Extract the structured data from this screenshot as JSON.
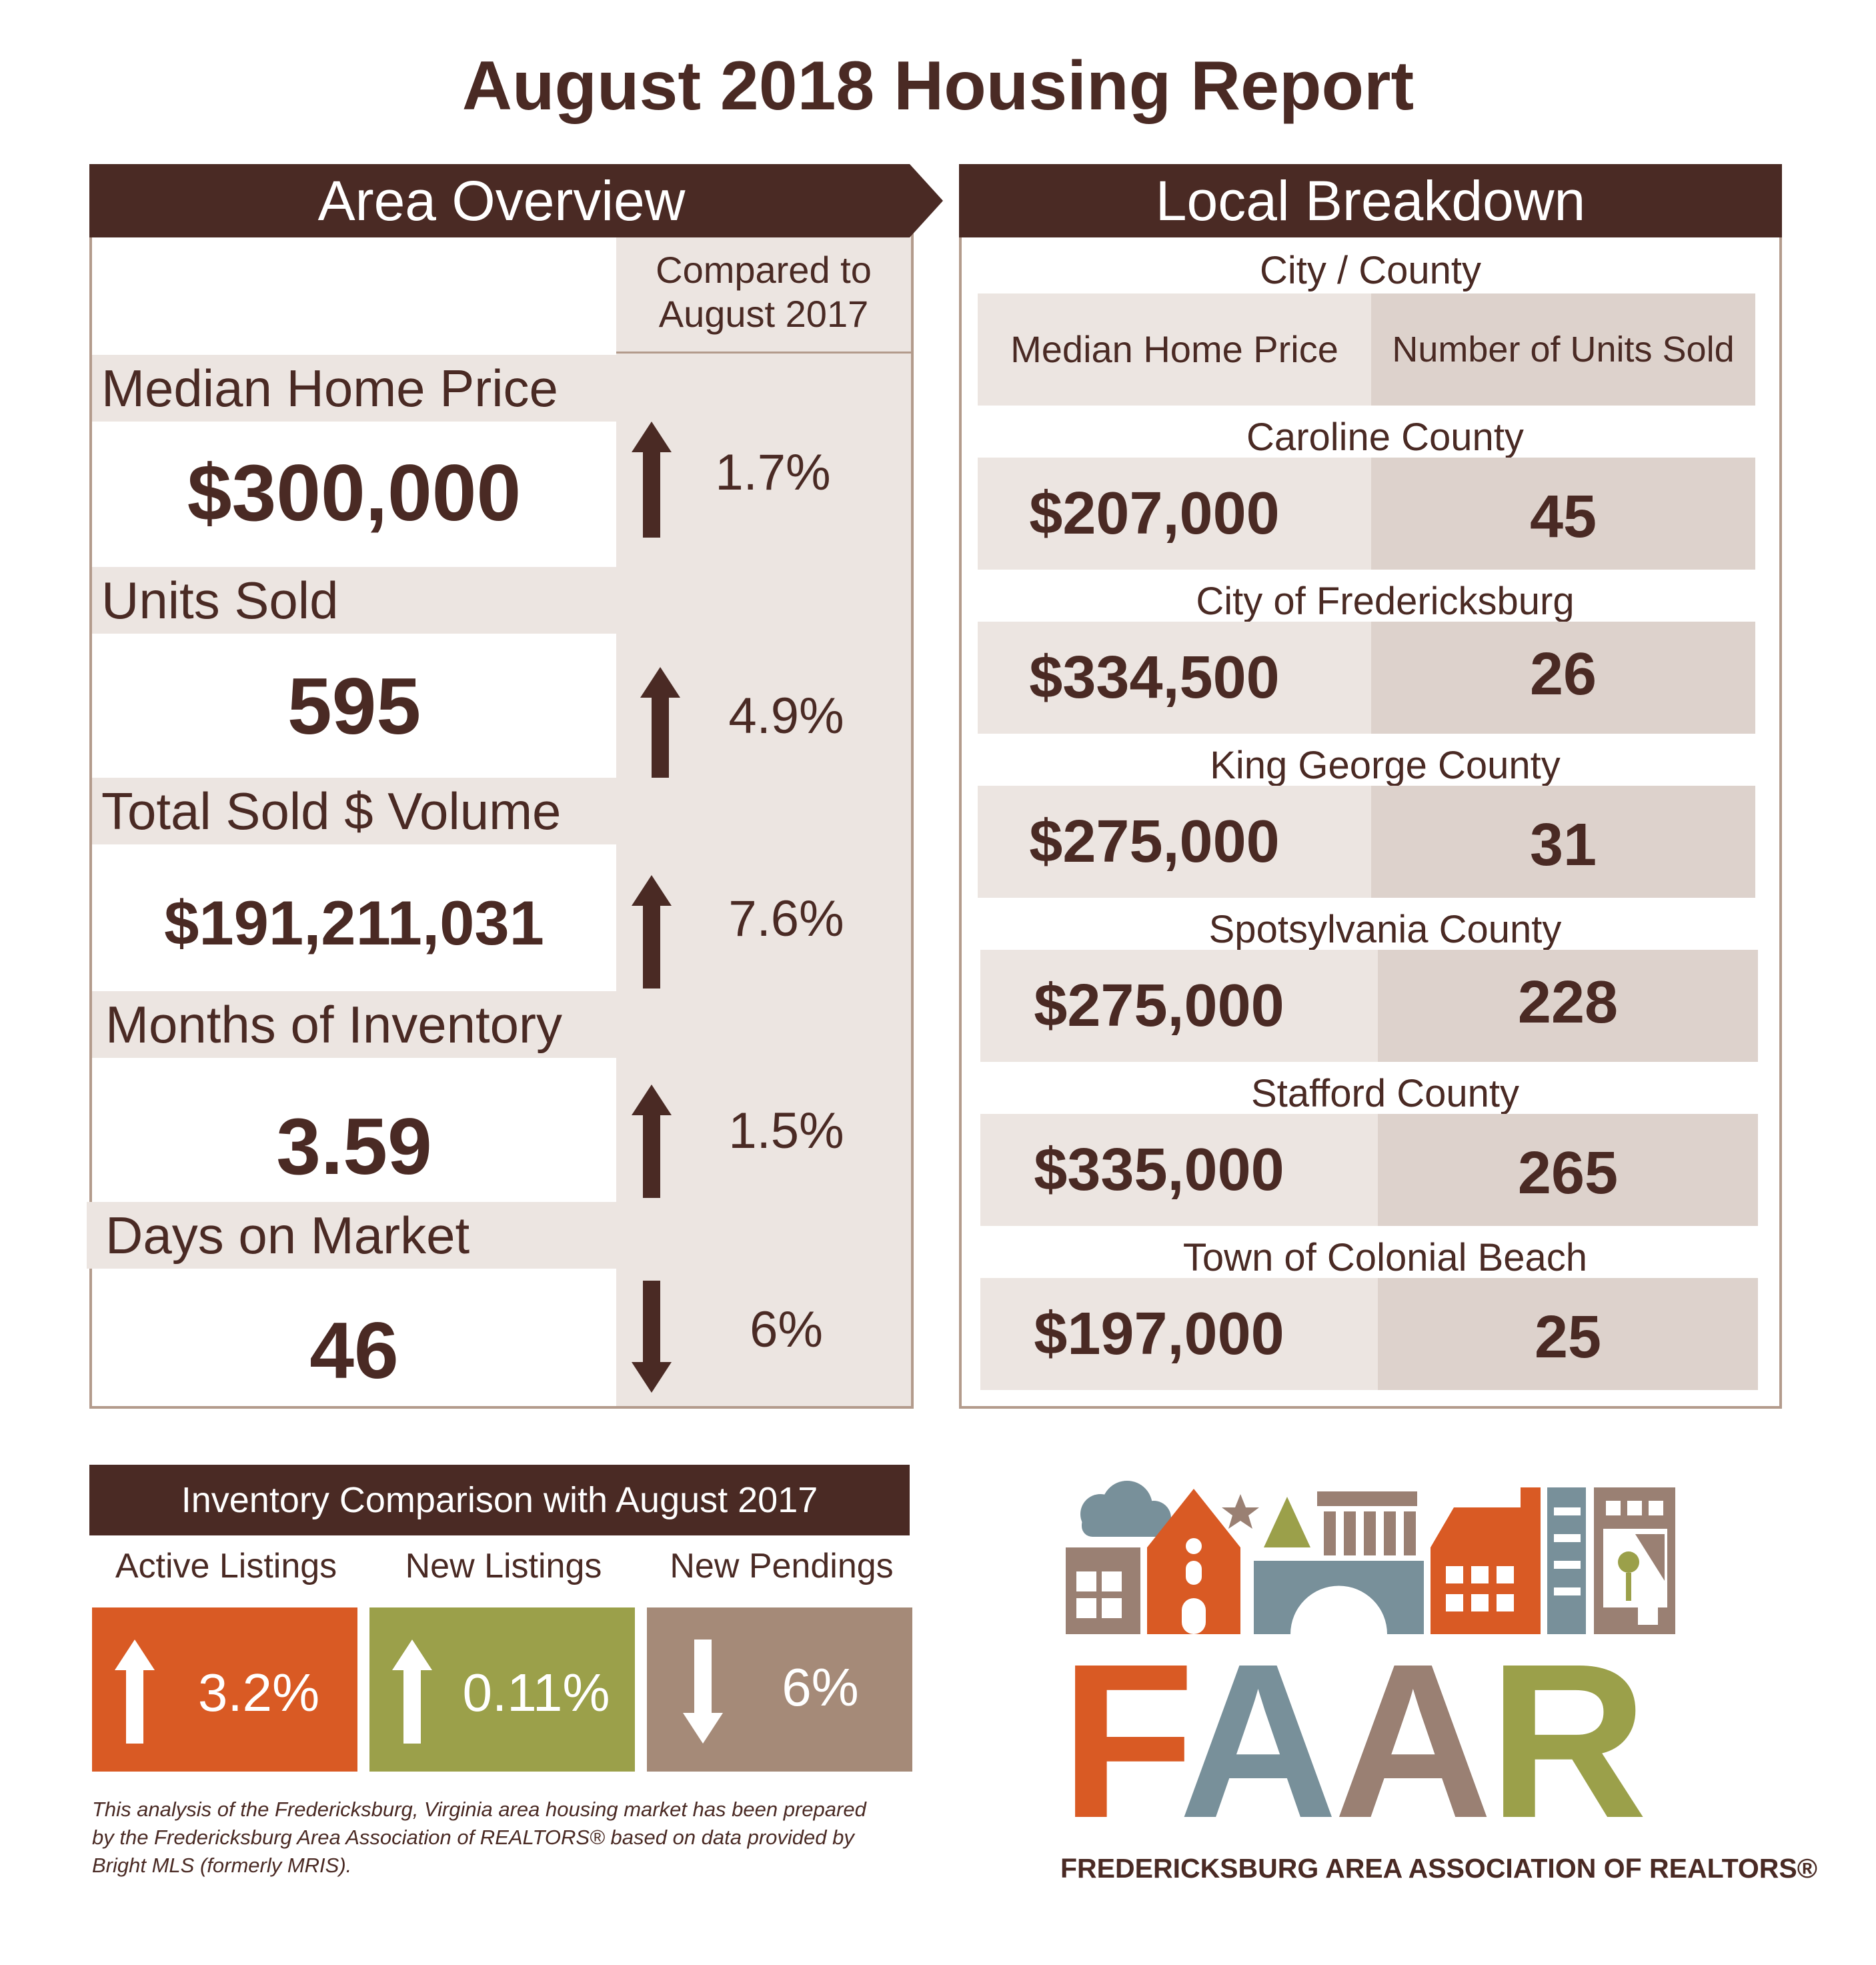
{
  "title": "August 2018 Housing Report",
  "area_overview": {
    "header": "Area Overview",
    "compared_label_line1": "Compared to",
    "compared_label_line2": "August 2017",
    "metrics": [
      {
        "label": "Median Home Price",
        "value": "$300,000",
        "direction": "up",
        "change": "1.7%"
      },
      {
        "label": "Units Sold",
        "value": "595",
        "direction": "up",
        "change": "4.9%"
      },
      {
        "label": "Total Sold $ Volume",
        "value": "$191,211,031",
        "direction": "up",
        "change": "7.6%"
      },
      {
        "label": "Months of Inventory",
        "value": "3.59",
        "direction": "up",
        "change": "1.5%"
      },
      {
        "label": "Days on Market",
        "value": "46",
        "direction": "down",
        "change": "6%"
      }
    ]
  },
  "local_breakdown": {
    "header": "Local Breakdown",
    "subheader": "City / County",
    "col_price": "Median Home Price",
    "col_units": "Number of Units Sold",
    "rows": [
      {
        "name": "Caroline County",
        "price": "$207,000",
        "units": "45"
      },
      {
        "name": "City of Fredericksburg",
        "price": "$334,500",
        "units": "26"
      },
      {
        "name": "King George County",
        "price": "$275,000",
        "units": "31"
      },
      {
        "name": "Spotsylvania County",
        "price": "$275,000",
        "units": "228"
      },
      {
        "name": "Stafford County",
        "price": "$335,000",
        "units": "265"
      },
      {
        "name": "Town of Colonial Beach",
        "price": "$197,000",
        "units": "25"
      }
    ]
  },
  "inventory": {
    "header": "Inventory Comparison with August 2017",
    "items": [
      {
        "label": "Active Listings",
        "change": "3.2%",
        "direction": "up",
        "color": "#d95a24"
      },
      {
        "label": "New Listings",
        "change": "0.11%",
        "direction": "up",
        "color": "#9ba04a"
      },
      {
        "label": "New Pendings",
        "change": "6%",
        "direction": "down",
        "color": "#a58a78"
      }
    ]
  },
  "footnote": "This analysis of the Fredericksburg, Virginia area housing market has been prepared by the Fredericksburg Area Association of REALTORS® based on data provided by Bright MLS (formerly MRIS).",
  "logo": {
    "letters": [
      "F",
      "A",
      "A",
      "R"
    ],
    "letter_colors": [
      "#d95a24",
      "#78909a",
      "#9a8073",
      "#9ba04a"
    ],
    "tagline": "FREDERICKSBURG AREA ASSOCIATION OF REALTORS®"
  },
  "colors": {
    "brown": "#4a2a24",
    "beige": "#ece5e1",
    "beige_dark": "#ddd2cc",
    "border": "#b39b8c"
  }
}
